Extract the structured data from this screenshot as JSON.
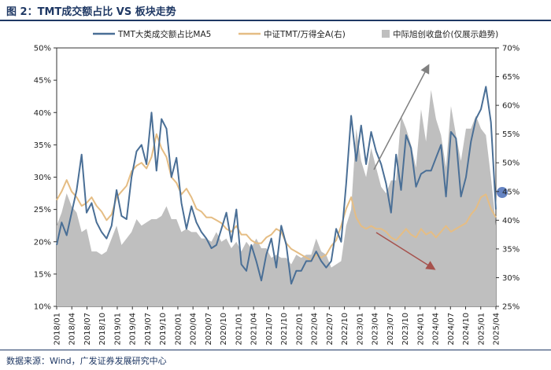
{
  "page": {
    "title": "图 2：TMT成交额占比 VS 板块走势",
    "source": "数据来源：Wind，广发证券发展研究中心"
  },
  "chart_data": {
    "type": "line",
    "legend": [
      {
        "name": "TMT大类成交额占比MA5",
        "color": "#4a6f96",
        "kind": "line"
      },
      {
        "name": "中证TMT/万得全A(右)",
        "color": "#e5bd84",
        "kind": "line"
      },
      {
        "name": "中际旭创收盘价(仅展示趋势)",
        "color": "#bfbfbf",
        "kind": "area"
      }
    ],
    "y_left": {
      "min": 10,
      "max": 50,
      "step": 5,
      "unit": "%",
      "ticks": [
        "10%",
        "15%",
        "20%",
        "25%",
        "30%",
        "35%",
        "40%",
        "45%",
        "50%"
      ]
    },
    "y_right": {
      "min": 25,
      "max": 70,
      "step": 5,
      "unit": "%",
      "ticks": [
        "25%",
        "30%",
        "35%",
        "40%",
        "45%",
        "50%",
        "55%",
        "60%",
        "65%",
        "70%"
      ]
    },
    "x_ticks": [
      "2018/01",
      "2018/04",
      "2018/07",
      "2018/10",
      "2019/01",
      "2019/04",
      "2019/07",
      "2019/10",
      "2020/01",
      "2020/04",
      "2020/07",
      "2020/10",
      "2021/01",
      "2021/04",
      "2021/07",
      "2021/10",
      "2022/01",
      "2022/04",
      "2022/07",
      "2022/10",
      "2023/01",
      "2023/04",
      "2023/07",
      "2023/10",
      "2024/01",
      "2024/04",
      "2024/07",
      "2024/10",
      "2025/01",
      "2025/04"
    ],
    "series": [
      {
        "name": "TMT大类成交额占比MA5",
        "axis": "left",
        "values": [
          19.5,
          23.0,
          21.0,
          24.5,
          28.0,
          33.5,
          24.5,
          26.0,
          23.0,
          21.5,
          20.5,
          22.5,
          28.0,
          24.0,
          23.5,
          30.0,
          34.0,
          35.0,
          32.0,
          40.0,
          31.0,
          39.0,
          37.5,
          30.0,
          33.0,
          26.0,
          22.0,
          25.5,
          23.0,
          21.5,
          20.5,
          19.0,
          19.5,
          22.0,
          24.5,
          20.0,
          25.0,
          16.5,
          15.5,
          19.5,
          17.0,
          14.0,
          18.0,
          20.5,
          16.0,
          22.5,
          19.5,
          13.5,
          15.5,
          15.5,
          17.0,
          17.0,
          18.5,
          17.0,
          16.0,
          17.0,
          22.0,
          20.0,
          29.0,
          39.5,
          32.5,
          38.0,
          32.0,
          37.0,
          34.0,
          32.0,
          29.0,
          24.5,
          33.5,
          28.0,
          36.5,
          34.5,
          28.5,
          30.5,
          31.0,
          31.0,
          33.0,
          35.0,
          27.0,
          37.0,
          36.0,
          27.0,
          30.0,
          35.5,
          39.0,
          40.5,
          44.0,
          38.5,
          25.0
        ]
      },
      {
        "name": "中证TMT/万得全A(右)",
        "axis": "right",
        "values": [
          43.5,
          45.0,
          47.0,
          45.0,
          44.0,
          42.5,
          43.0,
          44.0,
          42.5,
          41.5,
          40.0,
          41.0,
          44.0,
          45.0,
          46.0,
          48.5,
          49.5,
          50.0,
          49.0,
          51.0,
          55.0,
          52.5,
          51.0,
          47.5,
          46.5,
          44.5,
          45.5,
          44.0,
          42.0,
          41.5,
          40.5,
          40.5,
          40.0,
          39.5,
          38.5,
          38.0,
          39.0,
          37.5,
          37.5,
          36.5,
          36.0,
          36.0,
          37.0,
          37.5,
          38.5,
          38.0,
          36.0,
          35.0,
          34.5,
          34.0,
          33.5,
          33.0,
          34.0,
          33.5,
          34.0,
          35.5,
          36.5,
          39.0,
          42.0,
          44.0,
          40.5,
          39.0,
          38.5,
          39.0,
          38.5,
          38.5,
          38.0,
          37.0,
          36.5,
          37.5,
          38.5,
          37.5,
          37.0,
          38.5,
          37.5,
          38.0,
          37.0,
          38.0,
          39.0,
          38.0,
          38.5,
          39.0,
          39.5,
          41.0,
          42.0,
          44.0,
          44.5,
          42.0,
          40.5
        ]
      },
      {
        "name": "中际旭创收盘价(仅展示趋势)",
        "axis": "left",
        "kind": "area",
        "values": [
          22.0,
          25.0,
          27.0,
          26.0,
          24.0,
          22.0,
          21.5,
          19.0,
          18.0,
          18.5,
          18.0,
          21.0,
          22.0,
          20.0,
          20.0,
          22.0,
          23.0,
          23.0,
          22.5,
          24.0,
          23.0,
          24.5,
          25.0,
          24.0,
          23.0,
          22.0,
          21.5,
          22.0,
          21.0,
          21.0,
          20.0,
          20.5,
          21.0,
          20.5,
          20.0,
          19.5,
          19.5,
          19.0,
          19.5,
          19.5,
          20.0,
          19.5,
          18.5,
          18.0,
          17.5,
          18.0,
          17.0,
          17.0,
          17.5,
          18.0,
          17.5,
          18.5,
          20.0,
          19.0,
          17.5,
          16.5,
          16.0,
          17.5,
          22.0,
          25.5,
          37.0,
          33.0,
          29.5,
          35.0,
          31.0,
          29.0,
          27.0,
          30.0,
          29.0,
          40.0,
          37.0,
          35.5,
          31.0,
          41.0,
          35.0,
          44.0,
          38.5,
          37.0,
          31.0,
          41.5,
          36.0,
          33.0,
          37.0,
          38.0,
          39.0,
          38.0,
          36.0,
          30.5,
          22.0
        ]
      }
    ],
    "annotations": [
      {
        "type": "arrow",
        "direction": "up",
        "color": "#808080"
      },
      {
        "type": "arrow",
        "direction": "down",
        "color": "#a6524d"
      },
      {
        "type": "circle",
        "color": "#4a6fb8"
      }
    ]
  }
}
